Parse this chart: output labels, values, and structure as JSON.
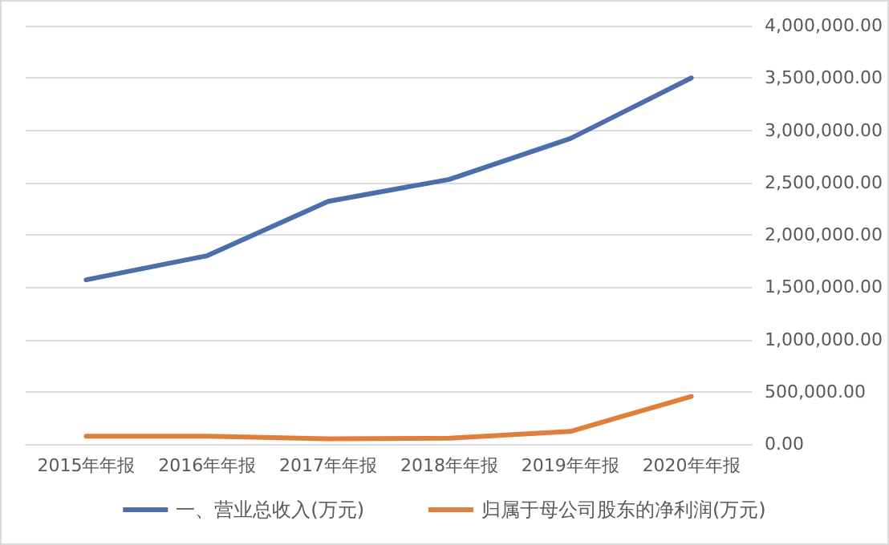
{
  "chart_data": {
    "type": "line",
    "categories": [
      "2015年年报",
      "2016年年报",
      "2017年年报",
      "2018年年报",
      "2019年年报",
      "2020年年报"
    ],
    "series": [
      {
        "name": "一、营业总收入(万元)",
        "color": "#4a6fab",
        "values": [
          1570000,
          1800000,
          2320000,
          2530000,
          2920000,
          3500000
        ]
      },
      {
        "name": "归属于母公司股东的净利润(万元)",
        "color": "#e07f3a",
        "values": [
          75000,
          75000,
          50000,
          55000,
          120000,
          455000
        ]
      }
    ],
    "ylim": [
      0,
      4000000
    ],
    "yticks": [
      {
        "value": 0,
        "label": "0.00"
      },
      {
        "value": 500000,
        "label": "500,000.00"
      },
      {
        "value": 1000000,
        "label": "1,000,000.00"
      },
      {
        "value": 1500000,
        "label": "1,500,000.00"
      },
      {
        "value": 2000000,
        "label": "2,000,000.00"
      },
      {
        "value": 2500000,
        "label": "2,500,000.00"
      },
      {
        "value": 3000000,
        "label": "3,000,000.00"
      },
      {
        "value": 3500000,
        "label": "3,500,000.00"
      },
      {
        "value": 4000000,
        "label": "4,000,000.00"
      }
    ],
    "grid": "y",
    "legend": "bottom",
    "marker": "none",
    "line_style": "solid"
  }
}
